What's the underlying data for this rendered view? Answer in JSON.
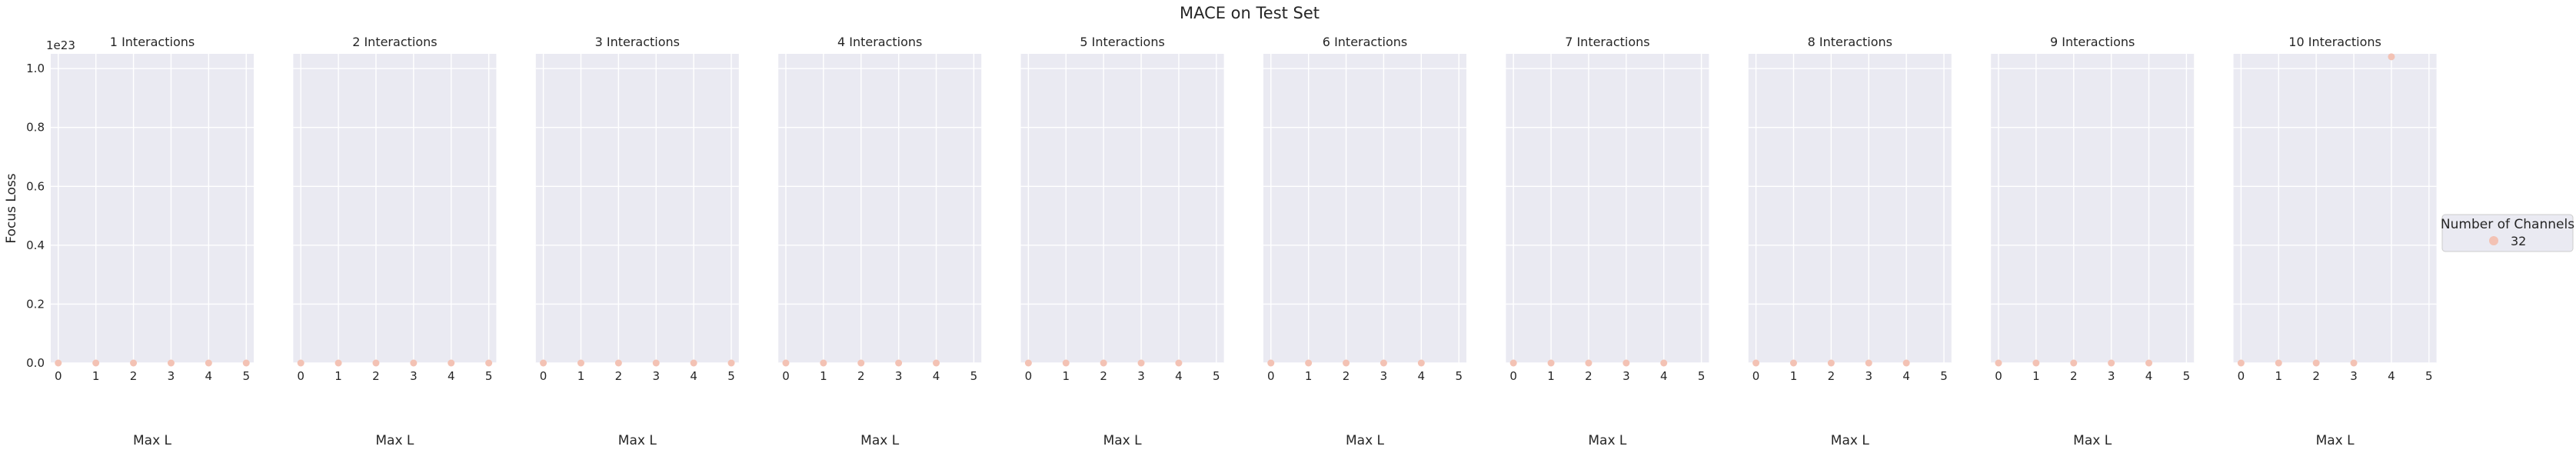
{
  "figure": {
    "title": "MACE on Test Set",
    "y_exponent_label": "1e23"
  },
  "legend": {
    "title": "Number of Channels",
    "placement": "right",
    "items": [
      {
        "label": "32",
        "color": "#f3c2b4"
      }
    ]
  },
  "colors": {
    "axes_bg": "#eaeaf2",
    "grid": "#ffffff",
    "marker": "#f3c2b4"
  },
  "chart_data": [
    {
      "type": "scatter",
      "title": "1 Interactions",
      "xlabel": "Max L",
      "ylabel": "Focus Loss",
      "xlim": [
        -0.2,
        5.2
      ],
      "ylim": [
        0,
        1.05e+23
      ],
      "x_ticks": [
        "0",
        "1",
        "2",
        "3",
        "4",
        "5"
      ],
      "y_ticks": [
        "0.0",
        "0.2",
        "0.4",
        "0.6",
        "0.8",
        "1.0"
      ],
      "grid": true,
      "series": [
        {
          "name": "32",
          "x": [
            0,
            1,
            2,
            3,
            4,
            5
          ],
          "y": [
            0,
            0,
            0,
            0,
            0,
            0
          ]
        }
      ]
    },
    {
      "type": "scatter",
      "title": "2 Interactions",
      "xlabel": "Max L",
      "ylabel": "",
      "xlim": [
        -0.2,
        5.2
      ],
      "ylim": [
        0,
        1.05e+23
      ],
      "x_ticks": [
        "0",
        "1",
        "2",
        "3",
        "4",
        "5"
      ],
      "grid": true,
      "series": [
        {
          "name": "32",
          "x": [
            0,
            1,
            2,
            3,
            4,
            5
          ],
          "y": [
            0,
            0,
            0,
            0,
            0,
            0
          ]
        }
      ]
    },
    {
      "type": "scatter",
      "title": "3 Interactions",
      "xlabel": "Max L",
      "ylabel": "",
      "xlim": [
        -0.2,
        5.2
      ],
      "ylim": [
        0,
        1.05e+23
      ],
      "x_ticks": [
        "0",
        "1",
        "2",
        "3",
        "4",
        "5"
      ],
      "grid": true,
      "series": [
        {
          "name": "32",
          "x": [
            0,
            1,
            2,
            3,
            4,
            5
          ],
          "y": [
            0,
            0,
            0,
            0,
            0,
            0
          ]
        }
      ]
    },
    {
      "type": "scatter",
      "title": "4 Interactions",
      "xlabel": "Max L",
      "ylabel": "",
      "xlim": [
        -0.2,
        5.2
      ],
      "ylim": [
        0,
        1.05e+23
      ],
      "x_ticks": [
        "0",
        "1",
        "2",
        "3",
        "4",
        "5"
      ],
      "grid": true,
      "series": [
        {
          "name": "32",
          "x": [
            0,
            1,
            2,
            3,
            4
          ],
          "y": [
            0,
            0,
            0,
            0,
            0
          ]
        }
      ]
    },
    {
      "type": "scatter",
      "title": "5 Interactions",
      "xlabel": "Max L",
      "ylabel": "",
      "xlim": [
        -0.2,
        5.2
      ],
      "ylim": [
        0,
        1.05e+23
      ],
      "x_ticks": [
        "0",
        "1",
        "2",
        "3",
        "4",
        "5"
      ],
      "grid": true,
      "series": [
        {
          "name": "32",
          "x": [
            0,
            1,
            2,
            3,
            4
          ],
          "y": [
            0,
            0,
            0,
            0,
            0
          ]
        }
      ]
    },
    {
      "type": "scatter",
      "title": "6 Interactions",
      "xlabel": "Max L",
      "ylabel": "",
      "xlim": [
        -0.2,
        5.2
      ],
      "ylim": [
        0,
        1.05e+23
      ],
      "x_ticks": [
        "0",
        "1",
        "2",
        "3",
        "4",
        "5"
      ],
      "grid": true,
      "series": [
        {
          "name": "32",
          "x": [
            0,
            1,
            2,
            3,
            4
          ],
          "y": [
            0,
            0,
            0,
            0,
            0
          ]
        }
      ]
    },
    {
      "type": "scatter",
      "title": "7 Interactions",
      "xlabel": "Max L",
      "ylabel": "",
      "xlim": [
        -0.2,
        5.2
      ],
      "ylim": [
        0,
        1.05e+23
      ],
      "x_ticks": [
        "0",
        "1",
        "2",
        "3",
        "4",
        "5"
      ],
      "grid": true,
      "series": [
        {
          "name": "32",
          "x": [
            0,
            1,
            2,
            3,
            4
          ],
          "y": [
            0,
            0,
            0,
            0,
            0
          ]
        }
      ]
    },
    {
      "type": "scatter",
      "title": "8 Interactions",
      "xlabel": "Max L",
      "ylabel": "",
      "xlim": [
        -0.2,
        5.2
      ],
      "ylim": [
        0,
        1.05e+23
      ],
      "x_ticks": [
        "0",
        "1",
        "2",
        "3",
        "4",
        "5"
      ],
      "grid": true,
      "series": [
        {
          "name": "32",
          "x": [
            0,
            1,
            2,
            3,
            4
          ],
          "y": [
            0,
            0,
            0,
            0,
            0
          ]
        }
      ]
    },
    {
      "type": "scatter",
      "title": "9 Interactions",
      "xlabel": "Max L",
      "ylabel": "",
      "xlim": [
        -0.2,
        5.2
      ],
      "ylim": [
        0,
        1.05e+23
      ],
      "x_ticks": [
        "0",
        "1",
        "2",
        "3",
        "4",
        "5"
      ],
      "grid": true,
      "series": [
        {
          "name": "32",
          "x": [
            0,
            1,
            2,
            3,
            4
          ],
          "y": [
            0,
            0,
            0,
            0,
            0
          ]
        }
      ]
    },
    {
      "type": "scatter",
      "title": "10 Interactions",
      "xlabel": "Max L",
      "ylabel": "",
      "xlim": [
        -0.2,
        5.2
      ],
      "ylim": [
        0,
        1.05e+23
      ],
      "x_ticks": [
        "0",
        "1",
        "2",
        "3",
        "4",
        "5"
      ],
      "grid": true,
      "series": [
        {
          "name": "32",
          "x": [
            0,
            1,
            2,
            3,
            4
          ],
          "y": [
            0,
            0,
            0,
            0,
            1.04e+23
          ]
        }
      ]
    }
  ]
}
